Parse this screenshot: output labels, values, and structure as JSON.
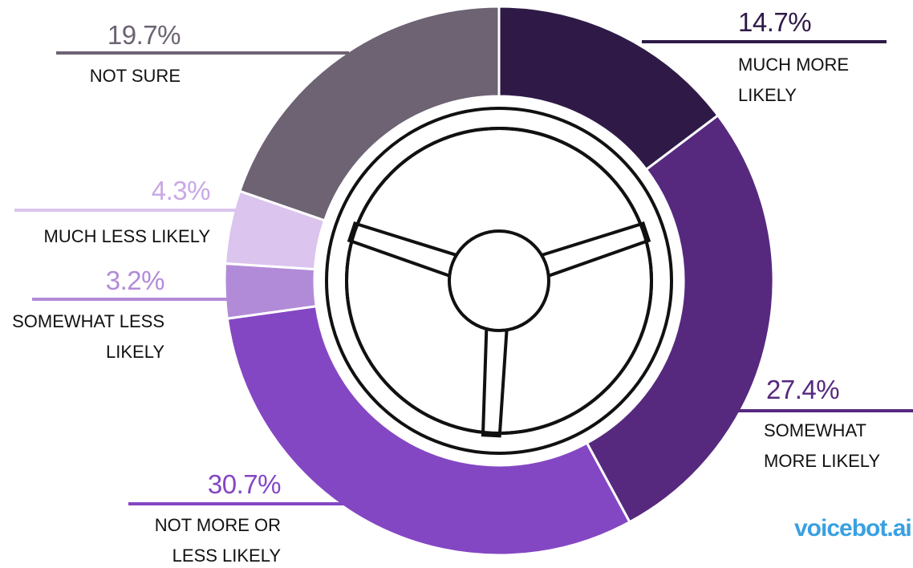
{
  "chart_data": {
    "type": "donut",
    "categories": [
      "MUCH MORE LIKELY",
      "SOMEWHAT MORE LIKELY",
      "NOT MORE OR LESS LIKELY",
      "SOMEWHAT LESS LIKELY",
      "MUCH LESS LIKELY",
      "NOT SURE"
    ],
    "values": [
      14.7,
      27.4,
      30.7,
      3.2,
      4.3,
      19.7
    ],
    "value_labels": [
      "14.7%",
      "27.4%",
      "30.7%",
      "3.2%",
      "4.3%",
      "19.7%"
    ],
    "colors": [
      "#2f1a47",
      "#56297f",
      "#8447c3",
      "#b28bd8",
      "#dbc4ee",
      "#6d6373"
    ]
  },
  "logo": "voicebot.ai"
}
